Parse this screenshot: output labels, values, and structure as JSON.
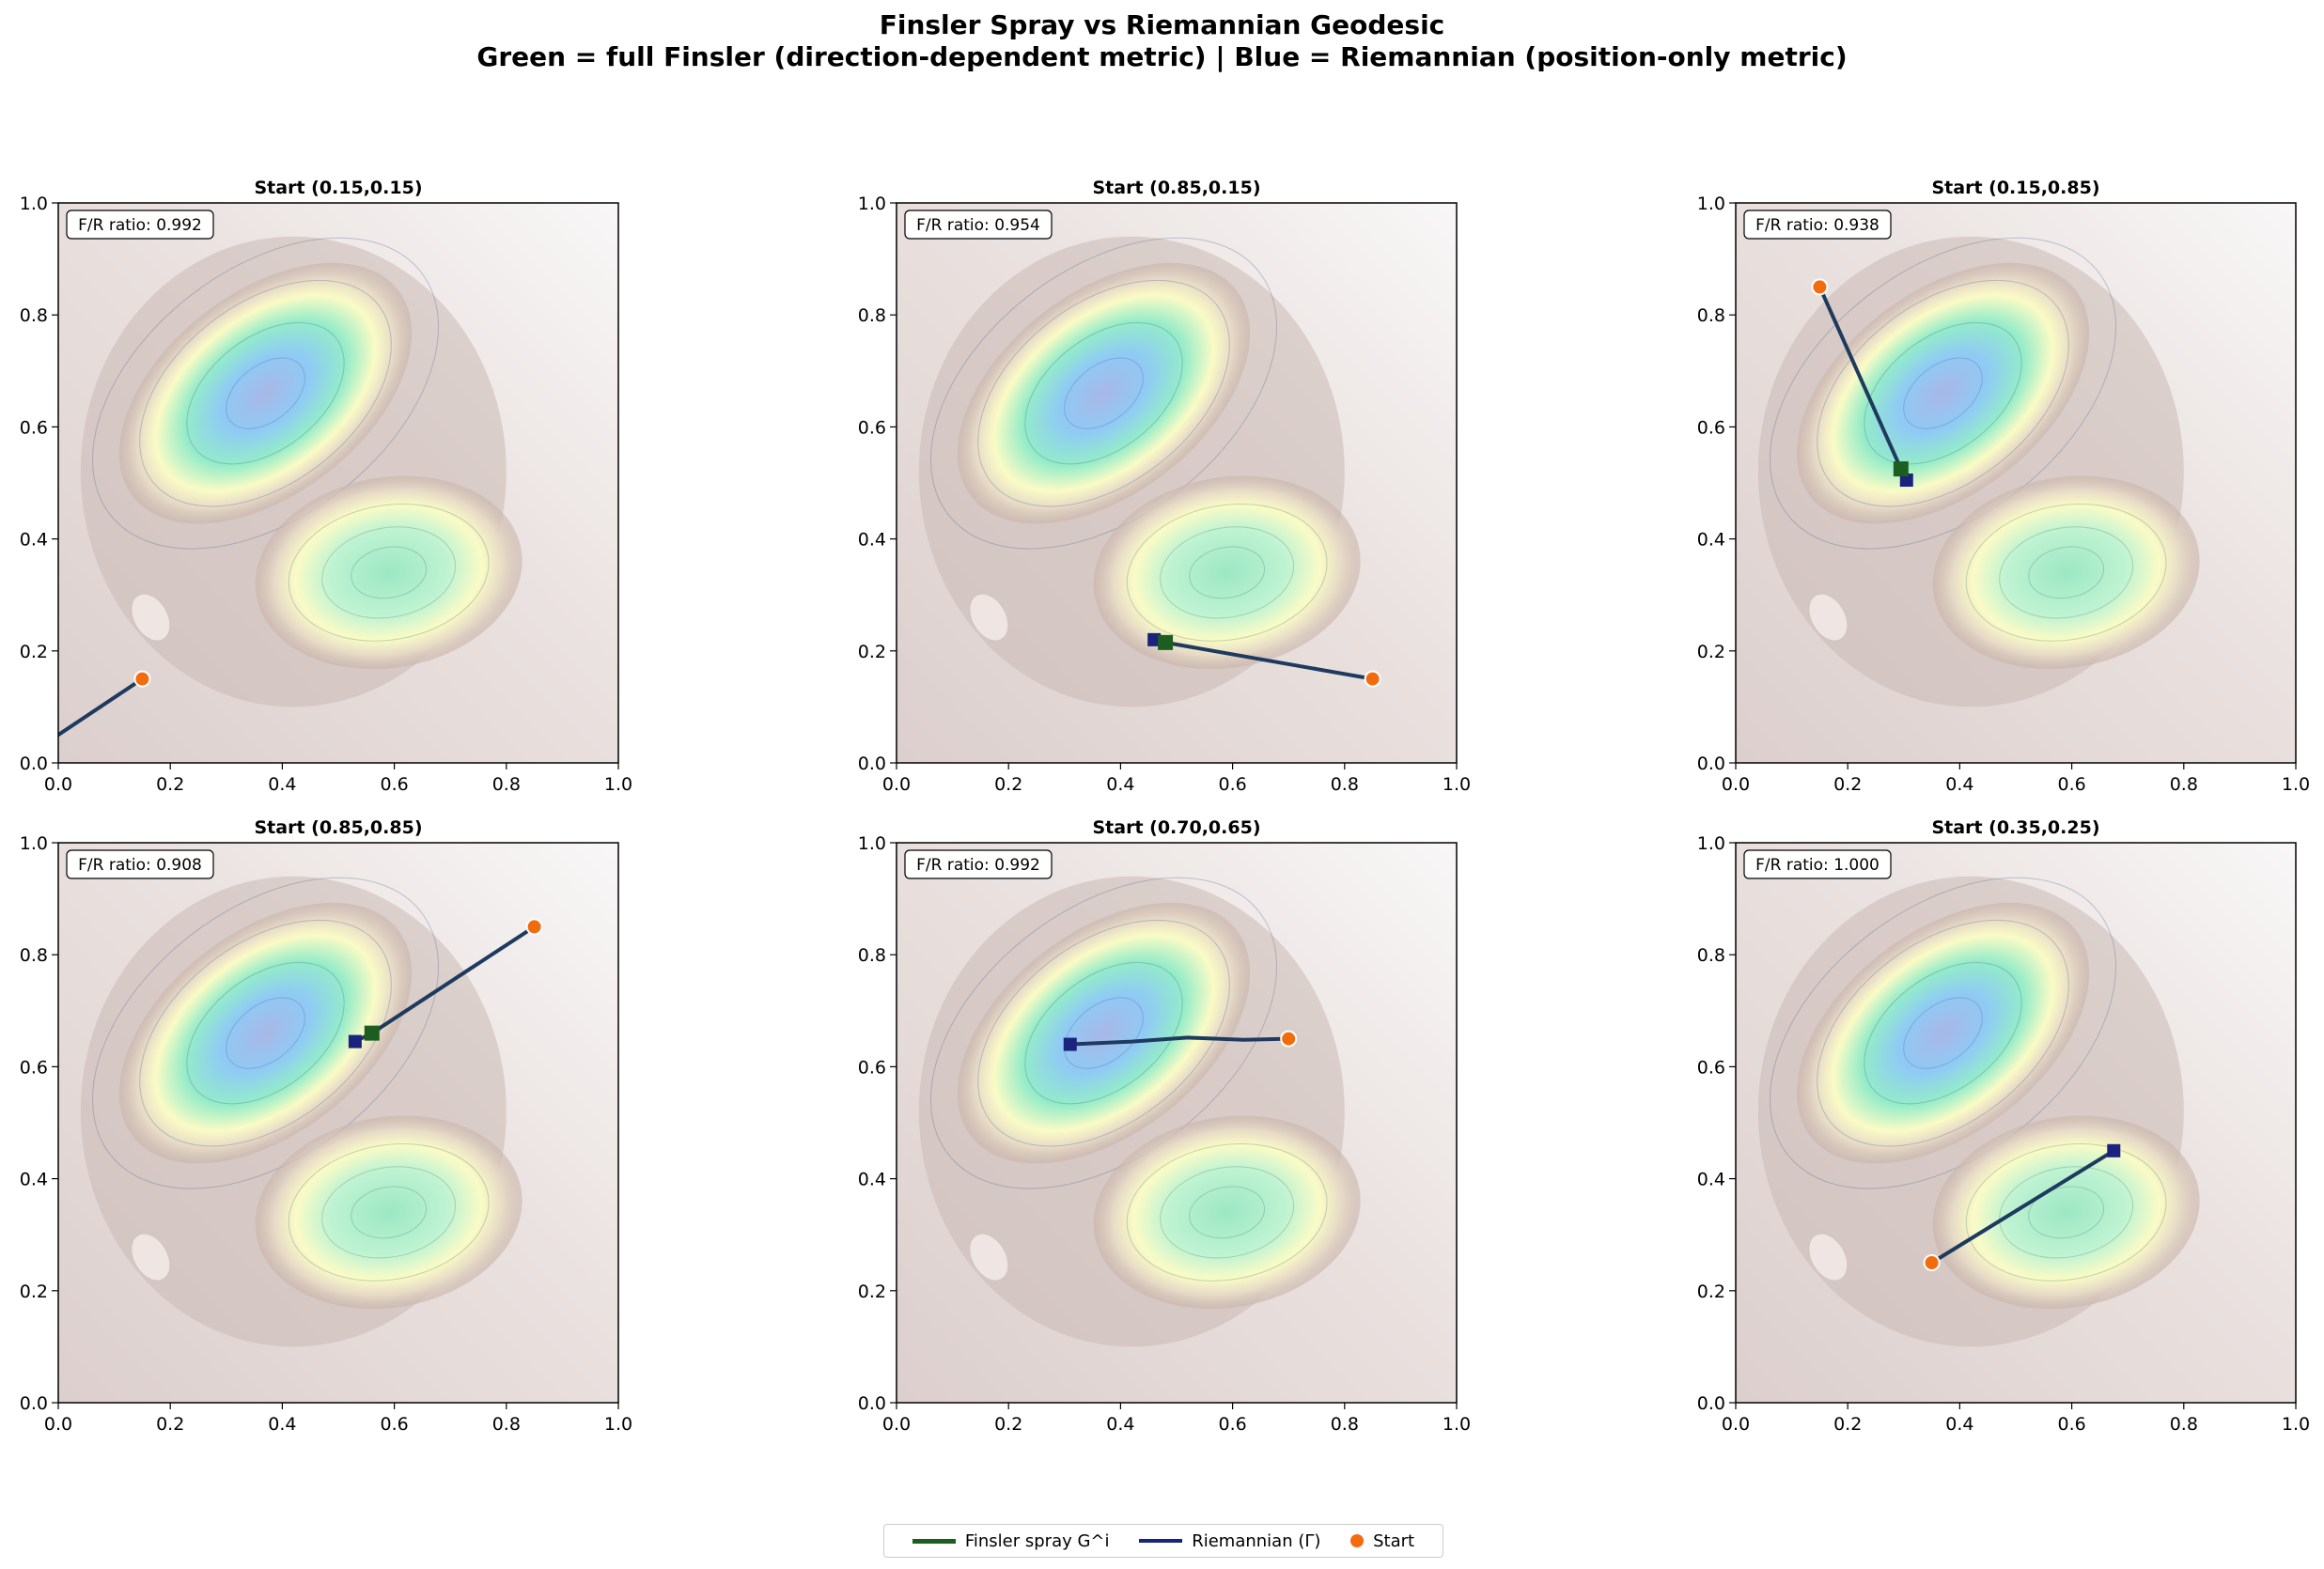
{
  "figure": {
    "title_line1": "Finsler Spray vs Riemannian Geodesic",
    "title_line2": "Green = full Finsler (direction-dependent metric) | Blue = Riemannian (position-only metric)"
  },
  "legend": {
    "finsler_label": "Finsler spray G^i",
    "riemannian_label": "Riemannian (Γ)",
    "start_label": "Start"
  },
  "colors": {
    "finsler": "#1b5e20",
    "riemannian": "#1a237e",
    "path": "#1e3a5f",
    "start": "#f26c0d"
  },
  "chart_data": [
    {
      "type": "line",
      "title": "Start (0.15,0.15)",
      "annotation": "F/R ratio: 0.992",
      "xlim": [
        0,
        1
      ],
      "ylim": [
        0,
        1
      ],
      "xticks": [
        "0.0",
        "0.2",
        "0.4",
        "0.6",
        "0.8",
        "1.0"
      ],
      "yticks": [
        "0.0",
        "0.2",
        "0.4",
        "0.6",
        "0.8",
        "1.0"
      ],
      "start": [
        0.15,
        0.15
      ],
      "finsler_end": null,
      "riemannian_end": null,
      "path": [
        [
          0.15,
          0.15
        ],
        [
          0.0,
          0.05
        ]
      ]
    },
    {
      "type": "line",
      "title": "Start (0.85,0.15)",
      "annotation": "F/R ratio: 0.954",
      "xlim": [
        0,
        1
      ],
      "ylim": [
        0,
        1
      ],
      "xticks": [
        "0.0",
        "0.2",
        "0.4",
        "0.6",
        "0.8",
        "1.0"
      ],
      "yticks": [
        "0.0",
        "0.2",
        "0.4",
        "0.6",
        "0.8",
        "1.0"
      ],
      "start": [
        0.85,
        0.15
      ],
      "finsler_end": [
        0.48,
        0.215
      ],
      "riemannian_end": [
        0.46,
        0.22
      ],
      "path": [
        [
          0.85,
          0.15
        ],
        [
          0.48,
          0.215
        ],
        [
          0.46,
          0.22
        ]
      ]
    },
    {
      "type": "line",
      "title": "Start (0.15,0.85)",
      "annotation": "F/R ratio: 0.938",
      "xlim": [
        0,
        1
      ],
      "ylim": [
        0,
        1
      ],
      "xticks": [
        "0.0",
        "0.2",
        "0.4",
        "0.6",
        "0.8",
        "1.0"
      ],
      "yticks": [
        "0.0",
        "0.2",
        "0.4",
        "0.6",
        "0.8",
        "1.0"
      ],
      "start": [
        0.15,
        0.85
      ],
      "finsler_end": [
        0.295,
        0.525
      ],
      "riemannian_end": [
        0.305,
        0.505
      ],
      "path": [
        [
          0.15,
          0.85
        ],
        [
          0.295,
          0.525
        ],
        [
          0.305,
          0.505
        ]
      ]
    },
    {
      "type": "line",
      "title": "Start (0.85,0.85)",
      "annotation": "F/R ratio: 0.908",
      "xlim": [
        0,
        1
      ],
      "ylim": [
        0,
        1
      ],
      "xticks": [
        "0.0",
        "0.2",
        "0.4",
        "0.6",
        "0.8",
        "1.0"
      ],
      "yticks": [
        "0.0",
        "0.2",
        "0.4",
        "0.6",
        "0.8",
        "1.0"
      ],
      "start": [
        0.85,
        0.85
      ],
      "finsler_end": [
        0.56,
        0.66
      ],
      "riemannian_end": [
        0.53,
        0.645
      ],
      "path": [
        [
          0.85,
          0.85
        ],
        [
          0.56,
          0.66
        ],
        [
          0.53,
          0.645
        ]
      ]
    },
    {
      "type": "line",
      "title": "Start (0.70,0.65)",
      "annotation": "F/R ratio: 0.992",
      "xlim": [
        0,
        1
      ],
      "ylim": [
        0,
        1
      ],
      "xticks": [
        "0.0",
        "0.2",
        "0.4",
        "0.6",
        "0.8",
        "1.0"
      ],
      "yticks": [
        "0.0",
        "0.2",
        "0.4",
        "0.6",
        "0.8",
        "1.0"
      ],
      "start": [
        0.7,
        0.65
      ],
      "finsler_end": null,
      "riemannian_end": [
        0.31,
        0.64
      ],
      "path": [
        [
          0.7,
          0.65
        ],
        [
          0.62,
          0.648
        ],
        [
          0.52,
          0.652
        ],
        [
          0.42,
          0.645
        ],
        [
          0.31,
          0.64
        ]
      ]
    },
    {
      "type": "line",
      "title": "Start (0.35,0.25)",
      "annotation": "F/R ratio: 1.000",
      "xlim": [
        0,
        1
      ],
      "ylim": [
        0,
        1
      ],
      "xticks": [
        "0.0",
        "0.2",
        "0.4",
        "0.6",
        "0.8",
        "1.0"
      ],
      "yticks": [
        "0.0",
        "0.2",
        "0.4",
        "0.6",
        "0.8",
        "1.0"
      ],
      "start": [
        0.35,
        0.25
      ],
      "finsler_end": null,
      "riemannian_end": [
        0.675,
        0.45
      ],
      "path": [
        [
          0.35,
          0.25
        ],
        [
          0.675,
          0.45
        ]
      ]
    }
  ]
}
